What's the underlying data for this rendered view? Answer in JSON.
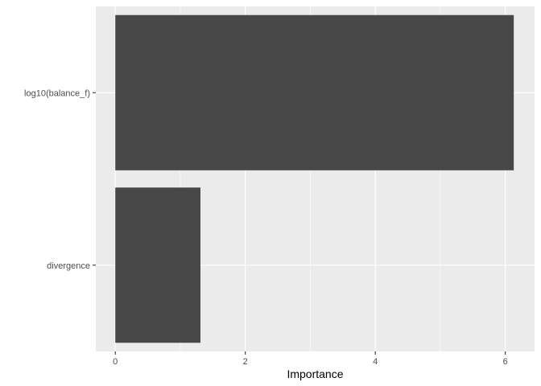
{
  "chart_data": {
    "type": "bar",
    "orientation": "horizontal",
    "categories": [
      "log10(balance_f)",
      "divergence"
    ],
    "values": [
      6.13,
      1.31
    ],
    "xlabel": "Importance",
    "ylabel": "",
    "xlim": [
      -0.3,
      6.45
    ],
    "xticks": [
      0,
      2,
      4,
      6
    ],
    "xtick_labels": [
      "0",
      "2",
      "4",
      "6"
    ],
    "grid": true,
    "colors": {
      "panel_background": "#ebebeb",
      "grid_major": "#ffffff",
      "bar_fill": "#474747",
      "tick_text": "#4d4d4d",
      "tick_mark": "#333333"
    }
  }
}
